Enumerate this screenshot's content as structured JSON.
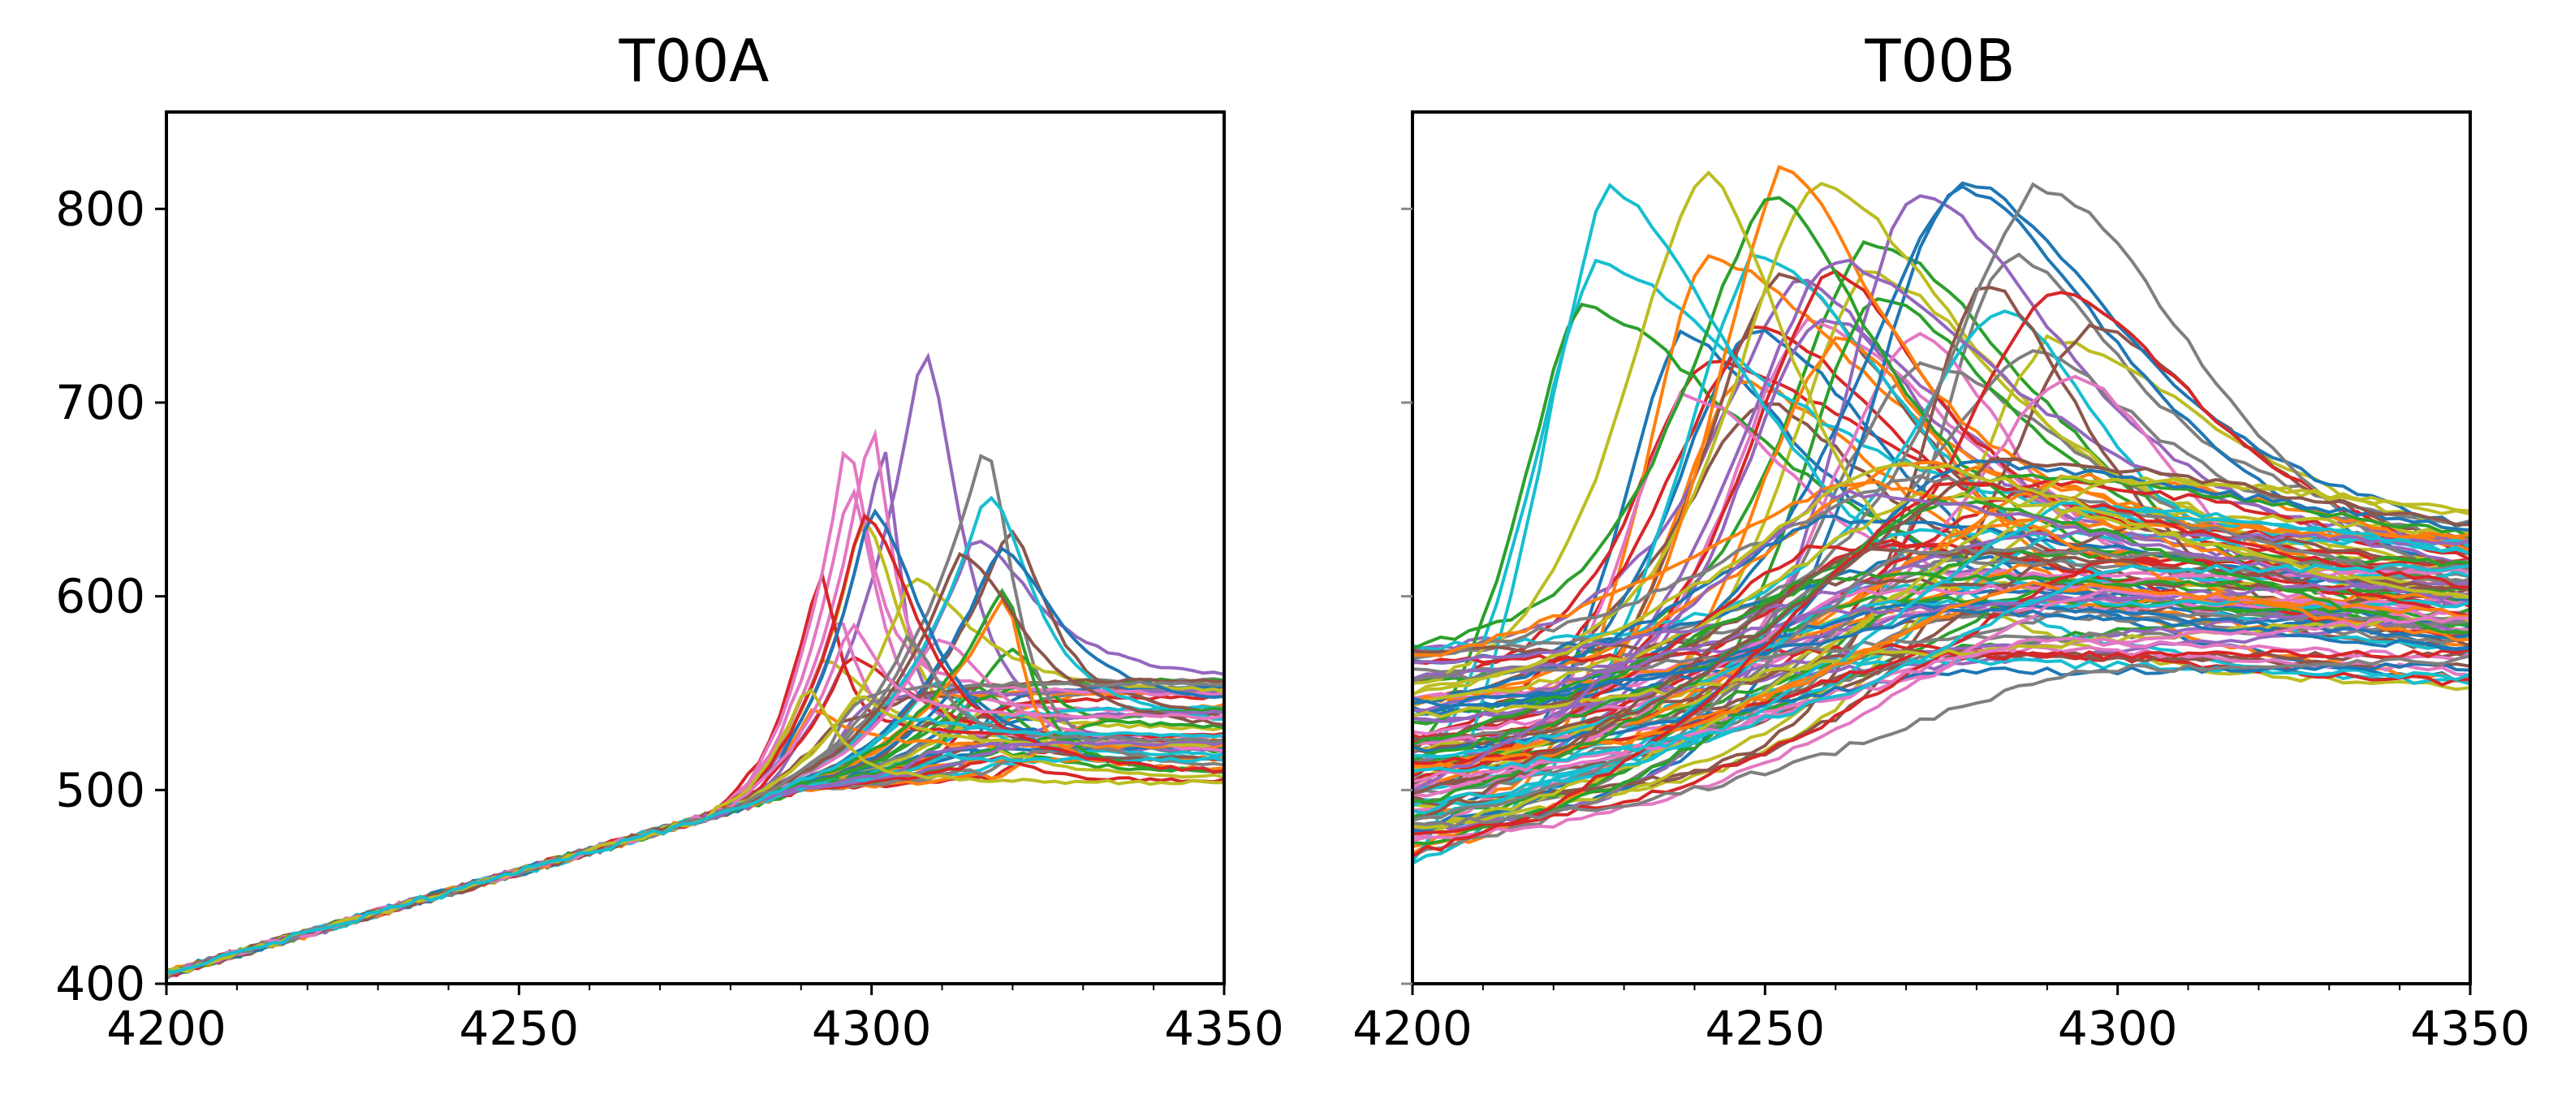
{
  "chart_data": [
    {
      "type": "line",
      "title": "T00A",
      "xlabel": "",
      "ylabel": "",
      "xlim": [
        4200,
        4350
      ],
      "ylim": [
        400,
        850
      ],
      "xticks": [
        4200,
        4250,
        4300,
        4350
      ],
      "yticks": [
        400,
        500,
        600,
        700,
        800
      ],
      "xtick_labels": [
        "4200",
        "4250",
        "4300",
        "4350"
      ],
      "ytick_labels": [
        "400",
        "500",
        "600",
        "700",
        "800"
      ],
      "grid": false,
      "legend": "none",
      "series_count": 60
    },
    {
      "type": "line",
      "title": "T00B",
      "xlabel": "",
      "ylabel": "",
      "xlim": [
        4200,
        4350
      ],
      "ylim": [
        400,
        850
      ],
      "xticks": [
        4200,
        4250,
        4300,
        4350
      ],
      "yticks": [
        400,
        500,
        600,
        700,
        800
      ],
      "xtick_labels": [
        "4200",
        "4250",
        "4300",
        "4350"
      ],
      "ytick_labels": [],
      "grid": false,
      "legend": "none",
      "series_count": 110
    }
  ],
  "colors": [
    "#1f77b4",
    "#ff7f0e",
    "#2ca02c",
    "#d62728",
    "#9467bd",
    "#8c564b",
    "#e377c2",
    "#7f7f7f",
    "#bcbd22",
    "#17becf"
  ]
}
